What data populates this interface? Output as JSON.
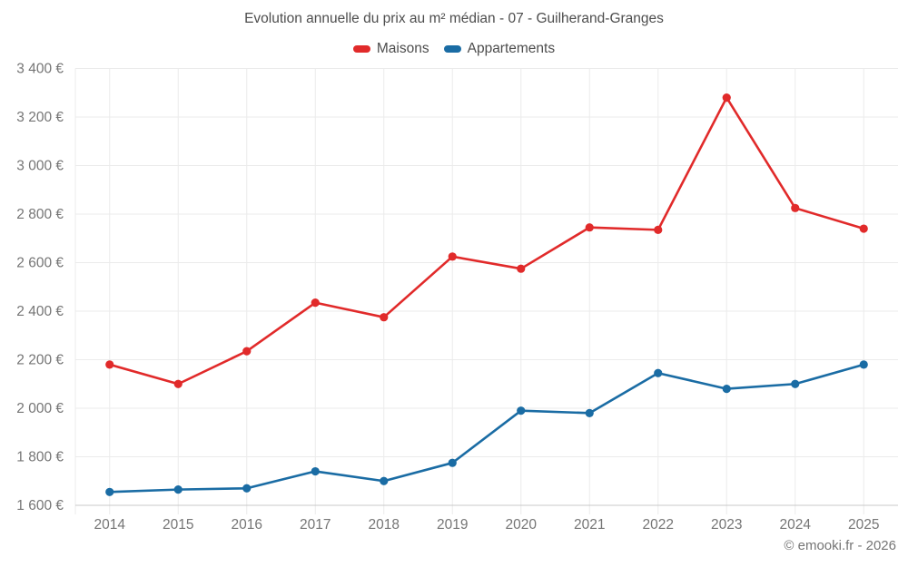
{
  "header": {
    "title": "Evolution annuelle du prix au m² médian - 07 - Guilherand-Granges"
  },
  "legend": {
    "items": [
      {
        "label": "Maisons",
        "color": "#e12a2a"
      },
      {
        "label": "Appartements",
        "color": "#1a6ca4"
      }
    ]
  },
  "chart_data": {
    "type": "line",
    "title": "Evolution annuelle du prix au m² médian - 07 - Guilherand-Granges",
    "categories": [
      "2014",
      "2015",
      "2016",
      "2017",
      "2018",
      "2019",
      "2020",
      "2021",
      "2022",
      "2023",
      "2024",
      "2025"
    ],
    "series": [
      {
        "name": "Maisons",
        "color": "#e12a2a",
        "values": [
          2180,
          2100,
          2235,
          2435,
          2375,
          2625,
          2575,
          2745,
          2735,
          3280,
          2825,
          2740
        ]
      },
      {
        "name": "Appartements",
        "color": "#1a6ca4",
        "values": [
          1655,
          1665,
          1670,
          1740,
          1700,
          1775,
          1990,
          1980,
          2145,
          2080,
          2100,
          2180
        ]
      }
    ],
    "ylim": [
      1600,
      3400
    ],
    "ytick_step": 200,
    "ytick_suffix": " €",
    "xlabel": "",
    "ylabel": "",
    "grid": true,
    "legend_position": "top"
  },
  "footer": {
    "text": "© emooki.fr - 2026"
  }
}
